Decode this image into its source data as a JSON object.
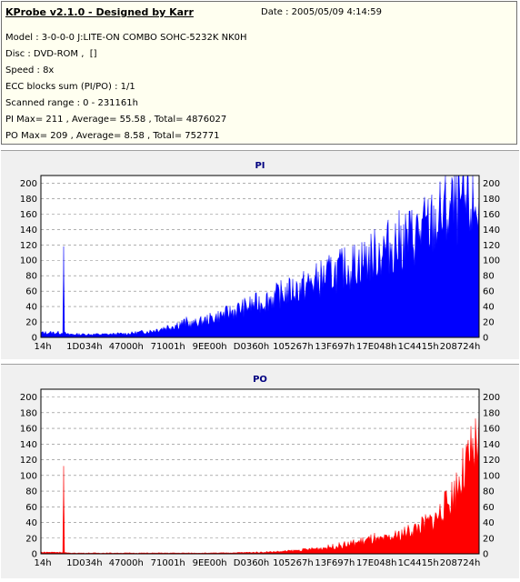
{
  "app": {
    "title": "KProbe v2.1.0 - Designed by Karr",
    "date": "Date : 2005/05/09 4:14:59"
  },
  "info": {
    "model": "Model : 3-0-0-0 J:LITE-ON COMBO SOHC-5232K NK0H",
    "disc": "Disc : DVD-ROM ,  []",
    "speed": "Speed : 8x",
    "ecc": "ECC blocks sum (PI/PO) : 1/1",
    "range": "Scanned range : 0 - 231161h",
    "pi_stats": "PI Max= 211 , Average= 55.58 , Total= 4876027",
    "po_stats": "PO Max= 209 , Average= 8.58 , Total= 752771"
  },
  "chart_data": [
    {
      "type": "area",
      "title": "PI",
      "color": "#0000ff",
      "title_color": "#000080",
      "ylim": [
        0,
        210
      ],
      "y_ticks": [
        0,
        20,
        40,
        60,
        80,
        100,
        120,
        140,
        160,
        180,
        200
      ],
      "x_tick_labels": [
        "14h",
        "1D034h",
        "47000h",
        "71001h",
        "9EE00h",
        "D0360h",
        "105267h",
        "13F697h",
        "17E048h",
        "1C4415h",
        "208724h"
      ],
      "grid": true,
      "series": [
        {
          "x_fraction": [
            0,
            0.05,
            0.051,
            0.052,
            0.06,
            0.1,
            0.15,
            0.2,
            0.25,
            0.3,
            0.35,
            0.4,
            0.45,
            0.5,
            0.55,
            0.6,
            0.65,
            0.7,
            0.75,
            0.8,
            0.85,
            0.9,
            0.92,
            0.95,
            1.0
          ],
          "values": [
            6,
            6,
            118,
            6,
            4,
            4,
            4,
            5,
            8,
            15,
            22,
            32,
            44,
            55,
            68,
            80,
            96,
            110,
            125,
            145,
            160,
            180,
            195,
            205,
            208
          ]
        }
      ]
    },
    {
      "type": "area",
      "title": "PO",
      "color": "#ff0000",
      "title_color": "#000080",
      "ylim": [
        0,
        210
      ],
      "y_ticks": [
        0,
        20,
        40,
        60,
        80,
        100,
        120,
        140,
        160,
        180,
        200
      ],
      "x_tick_labels": [
        "14h",
        "1D034h",
        "47000h",
        "71001h",
        "9EE00h",
        "D0360h",
        "105267h",
        "13F697h",
        "17E048h",
        "1C4415h",
        "208724h"
      ],
      "grid": true,
      "series": [
        {
          "x_fraction": [
            0,
            0.05,
            0.051,
            0.052,
            0.06,
            0.1,
            0.2,
            0.3,
            0.4,
            0.5,
            0.55,
            0.6,
            0.65,
            0.7,
            0.75,
            0.8,
            0.85,
            0.9,
            0.93,
            0.96,
            1.0
          ],
          "values": [
            2,
            2,
            112,
            2,
            1,
            1,
            1,
            1,
            1,
            2,
            3,
            5,
            8,
            12,
            18,
            25,
            38,
            55,
            80,
            120,
            175
          ]
        }
      ]
    }
  ]
}
